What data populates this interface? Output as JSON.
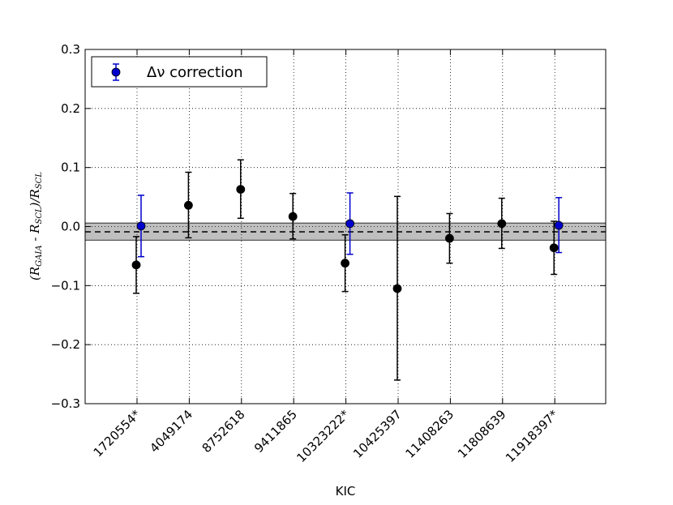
{
  "chart_data": {
    "type": "scatter",
    "xlabel": "KIC",
    "ylabel": "(R_GAIA - R_SCL)/R_SCL",
    "ylabel_parts": {
      "open": "(R",
      "sub1": "GAIA",
      "mid": " - R",
      "sub2": "SCL",
      "close": ")/R",
      "sub3": "SCL"
    },
    "ylim": [
      -0.3,
      0.3
    ],
    "yticks": [
      -0.3,
      -0.2,
      -0.1,
      0.0,
      0.1,
      0.2,
      0.3
    ],
    "ytick_labels": [
      "−0.3",
      "−0.2",
      "−0.1",
      "0.0",
      "0.1",
      "0.2",
      "0.3"
    ],
    "grid": true,
    "categories": [
      "1720554*",
      "4049174",
      "8752618",
      "9411865",
      "10323222*",
      "10425397",
      "11408263",
      "11808639",
      "11918397*"
    ],
    "band": {
      "lower": -0.023,
      "upper": 0.006,
      "center": -0.009,
      "color": "#bfbfbf"
    },
    "legend": {
      "label": "Δν correction",
      "placement": "top-left"
    },
    "series": [
      {
        "color": "#000000",
        "values": [
          -0.065,
          0.036,
          0.063,
          0.017,
          -0.062,
          -0.105,
          -0.02,
          0.005,
          -0.036
        ],
        "err_low": [
          0.048,
          0.055,
          0.049,
          0.038,
          0.048,
          0.155,
          0.042,
          0.042,
          0.045
        ],
        "err_high": [
          0.048,
          0.056,
          0.05,
          0.039,
          0.048,
          0.156,
          0.042,
          0.043,
          0.045
        ]
      },
      {
        "name": "Δν correction",
        "color": "#0000cc",
        "x_index": [
          0,
          4,
          8
        ],
        "values": [
          0.001,
          0.005,
          0.002
        ],
        "err_low": [
          0.052,
          0.052,
          0.046
        ],
        "err_high": [
          0.052,
          0.052,
          0.047
        ]
      }
    ]
  }
}
